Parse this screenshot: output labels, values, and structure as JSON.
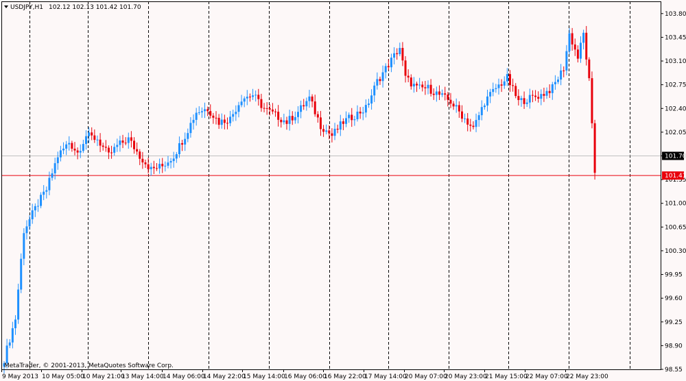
{
  "header": {
    "symbol": "USDJPY,H1",
    "ohlc": "102.12 102.13 101.42 101.70"
  },
  "copyright": "MetaTrader, © 2001-2013, MetaQuotes Software Corp.",
  "colors": {
    "background": "#fdf8f8",
    "bull": "#1e90ff",
    "bear": "#e8000b",
    "frame": "#000000",
    "bid_line": "#c0c0c0",
    "ask_line": "#e8000b",
    "bid_tag": "#000000",
    "ask_tag": "#e8000b"
  },
  "chart_data": {
    "type": "candlestick",
    "symbol": "USDJPY",
    "timeframe": "H1",
    "ylim": [
      98.55,
      103.98
    ],
    "y_ticks": [
      "103.80",
      "103.45",
      "103.10",
      "102.75",
      "102.40",
      "102.05",
      "101.70",
      "101.35",
      "101.00",
      "100.65",
      "100.30",
      "99.95",
      "99.60",
      "99.25",
      "98.90",
      "98.55"
    ],
    "x_labels": [
      "9 May 2013",
      "10 May 05:00",
      "10 May 21:00",
      "13 May 14:00",
      "14 May 06:00",
      "14 May 22:00",
      "15 May 14:00",
      "16 May 06:00",
      "16 May 22:00",
      "17 May 14:00",
      "20 May 07:00",
      "20 May 23:00",
      "21 May 15:00",
      "22 May 07:00",
      "22 May 23:00"
    ],
    "grid": "vertical dashed separators",
    "price_levels": {
      "bid": "101.70",
      "ask": "101.41"
    },
    "anchors": [
      [
        0,
        98.7
      ],
      [
        4,
        99.3
      ],
      [
        7,
        100.6
      ],
      [
        12,
        101.0
      ],
      [
        15,
        101.2
      ],
      [
        19,
        101.7
      ],
      [
        23,
        101.9
      ],
      [
        26,
        101.75
      ],
      [
        29,
        102.0
      ],
      [
        33,
        101.95
      ],
      [
        37,
        101.7
      ],
      [
        40,
        101.85
      ],
      [
        44,
        101.95
      ],
      [
        48,
        101.7
      ],
      [
        52,
        101.5
      ],
      [
        56,
        101.55
      ],
      [
        60,
        101.7
      ],
      [
        64,
        102.0
      ],
      [
        68,
        102.35
      ],
      [
        72,
        102.4
      ],
      [
        76,
        102.2
      ],
      [
        80,
        102.25
      ],
      [
        84,
        102.55
      ],
      [
        88,
        102.6
      ],
      [
        92,
        102.4
      ],
      [
        96,
        102.3
      ],
      [
        100,
        102.2
      ],
      [
        104,
        102.35
      ],
      [
        108,
        102.55
      ],
      [
        112,
        102.15
      ],
      [
        116,
        102.0
      ],
      [
        120,
        102.2
      ],
      [
        124,
        102.3
      ],
      [
        128,
        102.4
      ],
      [
        132,
        102.8
      ],
      [
        136,
        103.05
      ],
      [
        140,
        103.3
      ],
      [
        142,
        102.85
      ],
      [
        146,
        102.7
      ],
      [
        150,
        102.7
      ],
      [
        154,
        102.6
      ],
      [
        158,
        102.5
      ],
      [
        162,
        102.3
      ],
      [
        166,
        102.1
      ],
      [
        170,
        102.5
      ],
      [
        174,
        102.7
      ],
      [
        178,
        102.85
      ],
      [
        182,
        102.5
      ],
      [
        186,
        102.55
      ],
      [
        190,
        102.6
      ],
      [
        194,
        102.7
      ],
      [
        198,
        103.0
      ],
      [
        200,
        103.5
      ],
      [
        203,
        103.15
      ],
      [
        205,
        103.5
      ],
      [
        207,
        102.8
      ],
      [
        209,
        101.45
      ]
    ]
  }
}
